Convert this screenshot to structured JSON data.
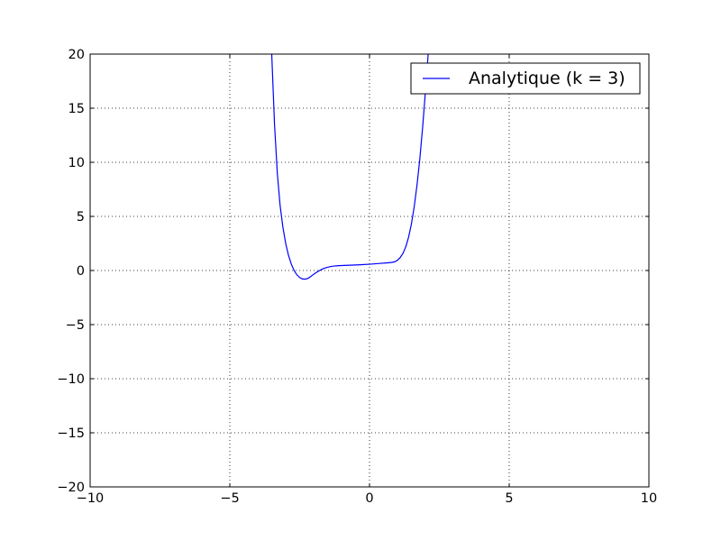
{
  "chart_data": {
    "type": "line",
    "title": "",
    "xlabel": "",
    "ylabel": "",
    "xlim": [
      -10,
      10
    ],
    "ylim": [
      -20,
      20
    ],
    "x_ticks": [
      -10,
      -5,
      0,
      5,
      10
    ],
    "x_tick_labels": [
      "−10",
      "−5",
      "0",
      "5",
      "10"
    ],
    "y_ticks": [
      -20,
      -15,
      -10,
      -5,
      0,
      5,
      10,
      15,
      20
    ],
    "y_tick_labels": [
      "−20",
      "−15",
      "−10",
      "−5",
      "0",
      "5",
      "10",
      "15",
      "20"
    ],
    "grid": true,
    "legend_position": "top-right",
    "series": [
      {
        "name": "Analytique (k = 3)",
        "color": "#0000ff",
        "x": [
          -3.6,
          -3.5,
          -3.4,
          -3.3,
          -3.2,
          -3.1,
          -3.0,
          -2.9,
          -2.8,
          -2.7,
          -2.6,
          -2.5,
          -2.4,
          -2.3,
          -2.2,
          -2.1,
          -2.0,
          -1.9,
          -1.8,
          -1.7,
          -1.6,
          -1.5,
          -1.4,
          -1.3,
          -1.2,
          -1.1,
          -1.0,
          -0.8,
          -0.6,
          -0.4,
          -0.2,
          0.0,
          0.2,
          0.4,
          0.6,
          0.8,
          0.9,
          1.0,
          1.1,
          1.2,
          1.3,
          1.4,
          1.5,
          1.6,
          1.7,
          1.8,
          1.9,
          2.0,
          2.1,
          2.15,
          2.2
        ],
        "y": [
          30.0,
          20.0,
          13.5,
          9.0,
          6.0,
          4.0,
          2.5,
          1.4,
          0.6,
          0.0,
          -0.4,
          -0.65,
          -0.78,
          -0.8,
          -0.72,
          -0.55,
          -0.35,
          -0.18,
          -0.02,
          0.12,
          0.22,
          0.3,
          0.36,
          0.4,
          0.43,
          0.45,
          0.46,
          0.48,
          0.5,
          0.52,
          0.55,
          0.58,
          0.62,
          0.66,
          0.7,
          0.75,
          0.8,
          0.95,
          1.2,
          1.6,
          2.2,
          3.1,
          4.3,
          5.9,
          7.9,
          10.3,
          13.2,
          16.5,
          20.0,
          22.0,
          24.0
        ]
      }
    ]
  }
}
